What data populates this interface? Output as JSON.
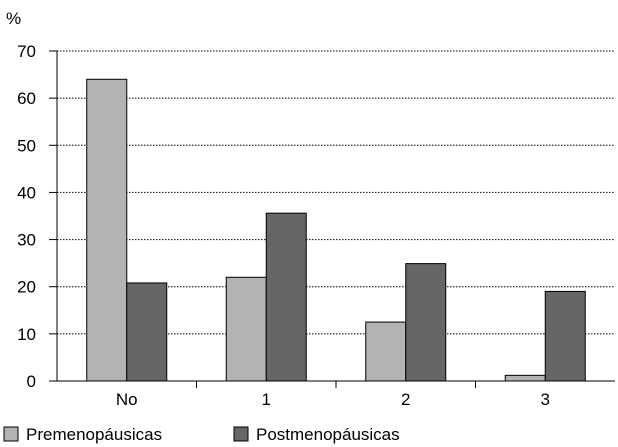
{
  "chart_data": {
    "type": "bar",
    "ylabel": "%",
    "ylim": [
      0,
      70
    ],
    "yticks": [
      0,
      10,
      20,
      30,
      40,
      50,
      60,
      70
    ],
    "grid": true,
    "legend_position": "bottom-left",
    "categories": [
      "No",
      "1",
      "2",
      "3"
    ],
    "series": [
      {
        "name": "Premenopáusicas",
        "color": "#b3b3b3",
        "values": [
          64,
          22,
          12.5,
          1.2
        ]
      },
      {
        "name": "Postmenopáusicas",
        "color": "#666666",
        "values": [
          20.8,
          35.6,
          24.9,
          19
        ]
      }
    ]
  }
}
